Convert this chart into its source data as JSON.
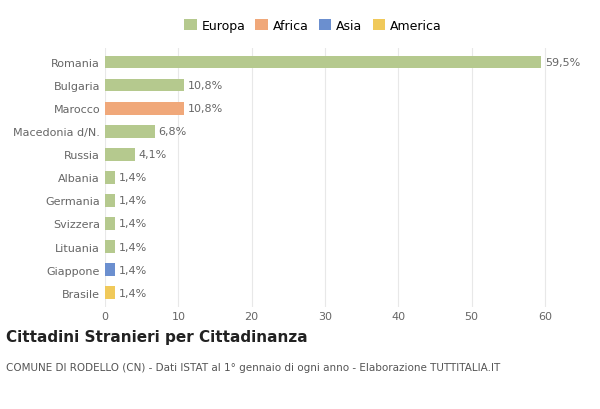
{
  "countries": [
    "Romania",
    "Bulgaria",
    "Marocco",
    "Macedonia d/N.",
    "Russia",
    "Albania",
    "Germania",
    "Svizzera",
    "Lituania",
    "Giappone",
    "Brasile"
  ],
  "values": [
    59.5,
    10.8,
    10.8,
    6.8,
    4.1,
    1.4,
    1.4,
    1.4,
    1.4,
    1.4,
    1.4
  ],
  "labels": [
    "59,5%",
    "10,8%",
    "10,8%",
    "6,8%",
    "4,1%",
    "1,4%",
    "1,4%",
    "1,4%",
    "1,4%",
    "1,4%",
    "1,4%"
  ],
  "colors": [
    "#b5c98e",
    "#b5c98e",
    "#f0a87a",
    "#b5c98e",
    "#b5c98e",
    "#b5c98e",
    "#b5c98e",
    "#b5c98e",
    "#b5c98e",
    "#6b8fcf",
    "#f0c95a"
  ],
  "legend_labels": [
    "Europa",
    "Africa",
    "Asia",
    "America"
  ],
  "legend_colors": [
    "#b5c98e",
    "#f0a87a",
    "#6b8fcf",
    "#f0c95a"
  ],
  "title": "Cittadini Stranieri per Cittadinanza",
  "subtitle": "COMUNE DI RODELLO (CN) - Dati ISTAT al 1° gennaio di ogni anno - Elaborazione TUTTITALIA.IT",
  "xlim": [
    0,
    63
  ],
  "xticks": [
    0,
    10,
    20,
    30,
    40,
    50,
    60
  ],
  "bg_color": "#ffffff",
  "grid_color": "#e8e8e8",
  "bar_height": 0.55,
  "title_fontsize": 11,
  "subtitle_fontsize": 7.5,
  "label_fontsize": 8,
  "tick_fontsize": 8,
  "legend_fontsize": 9
}
